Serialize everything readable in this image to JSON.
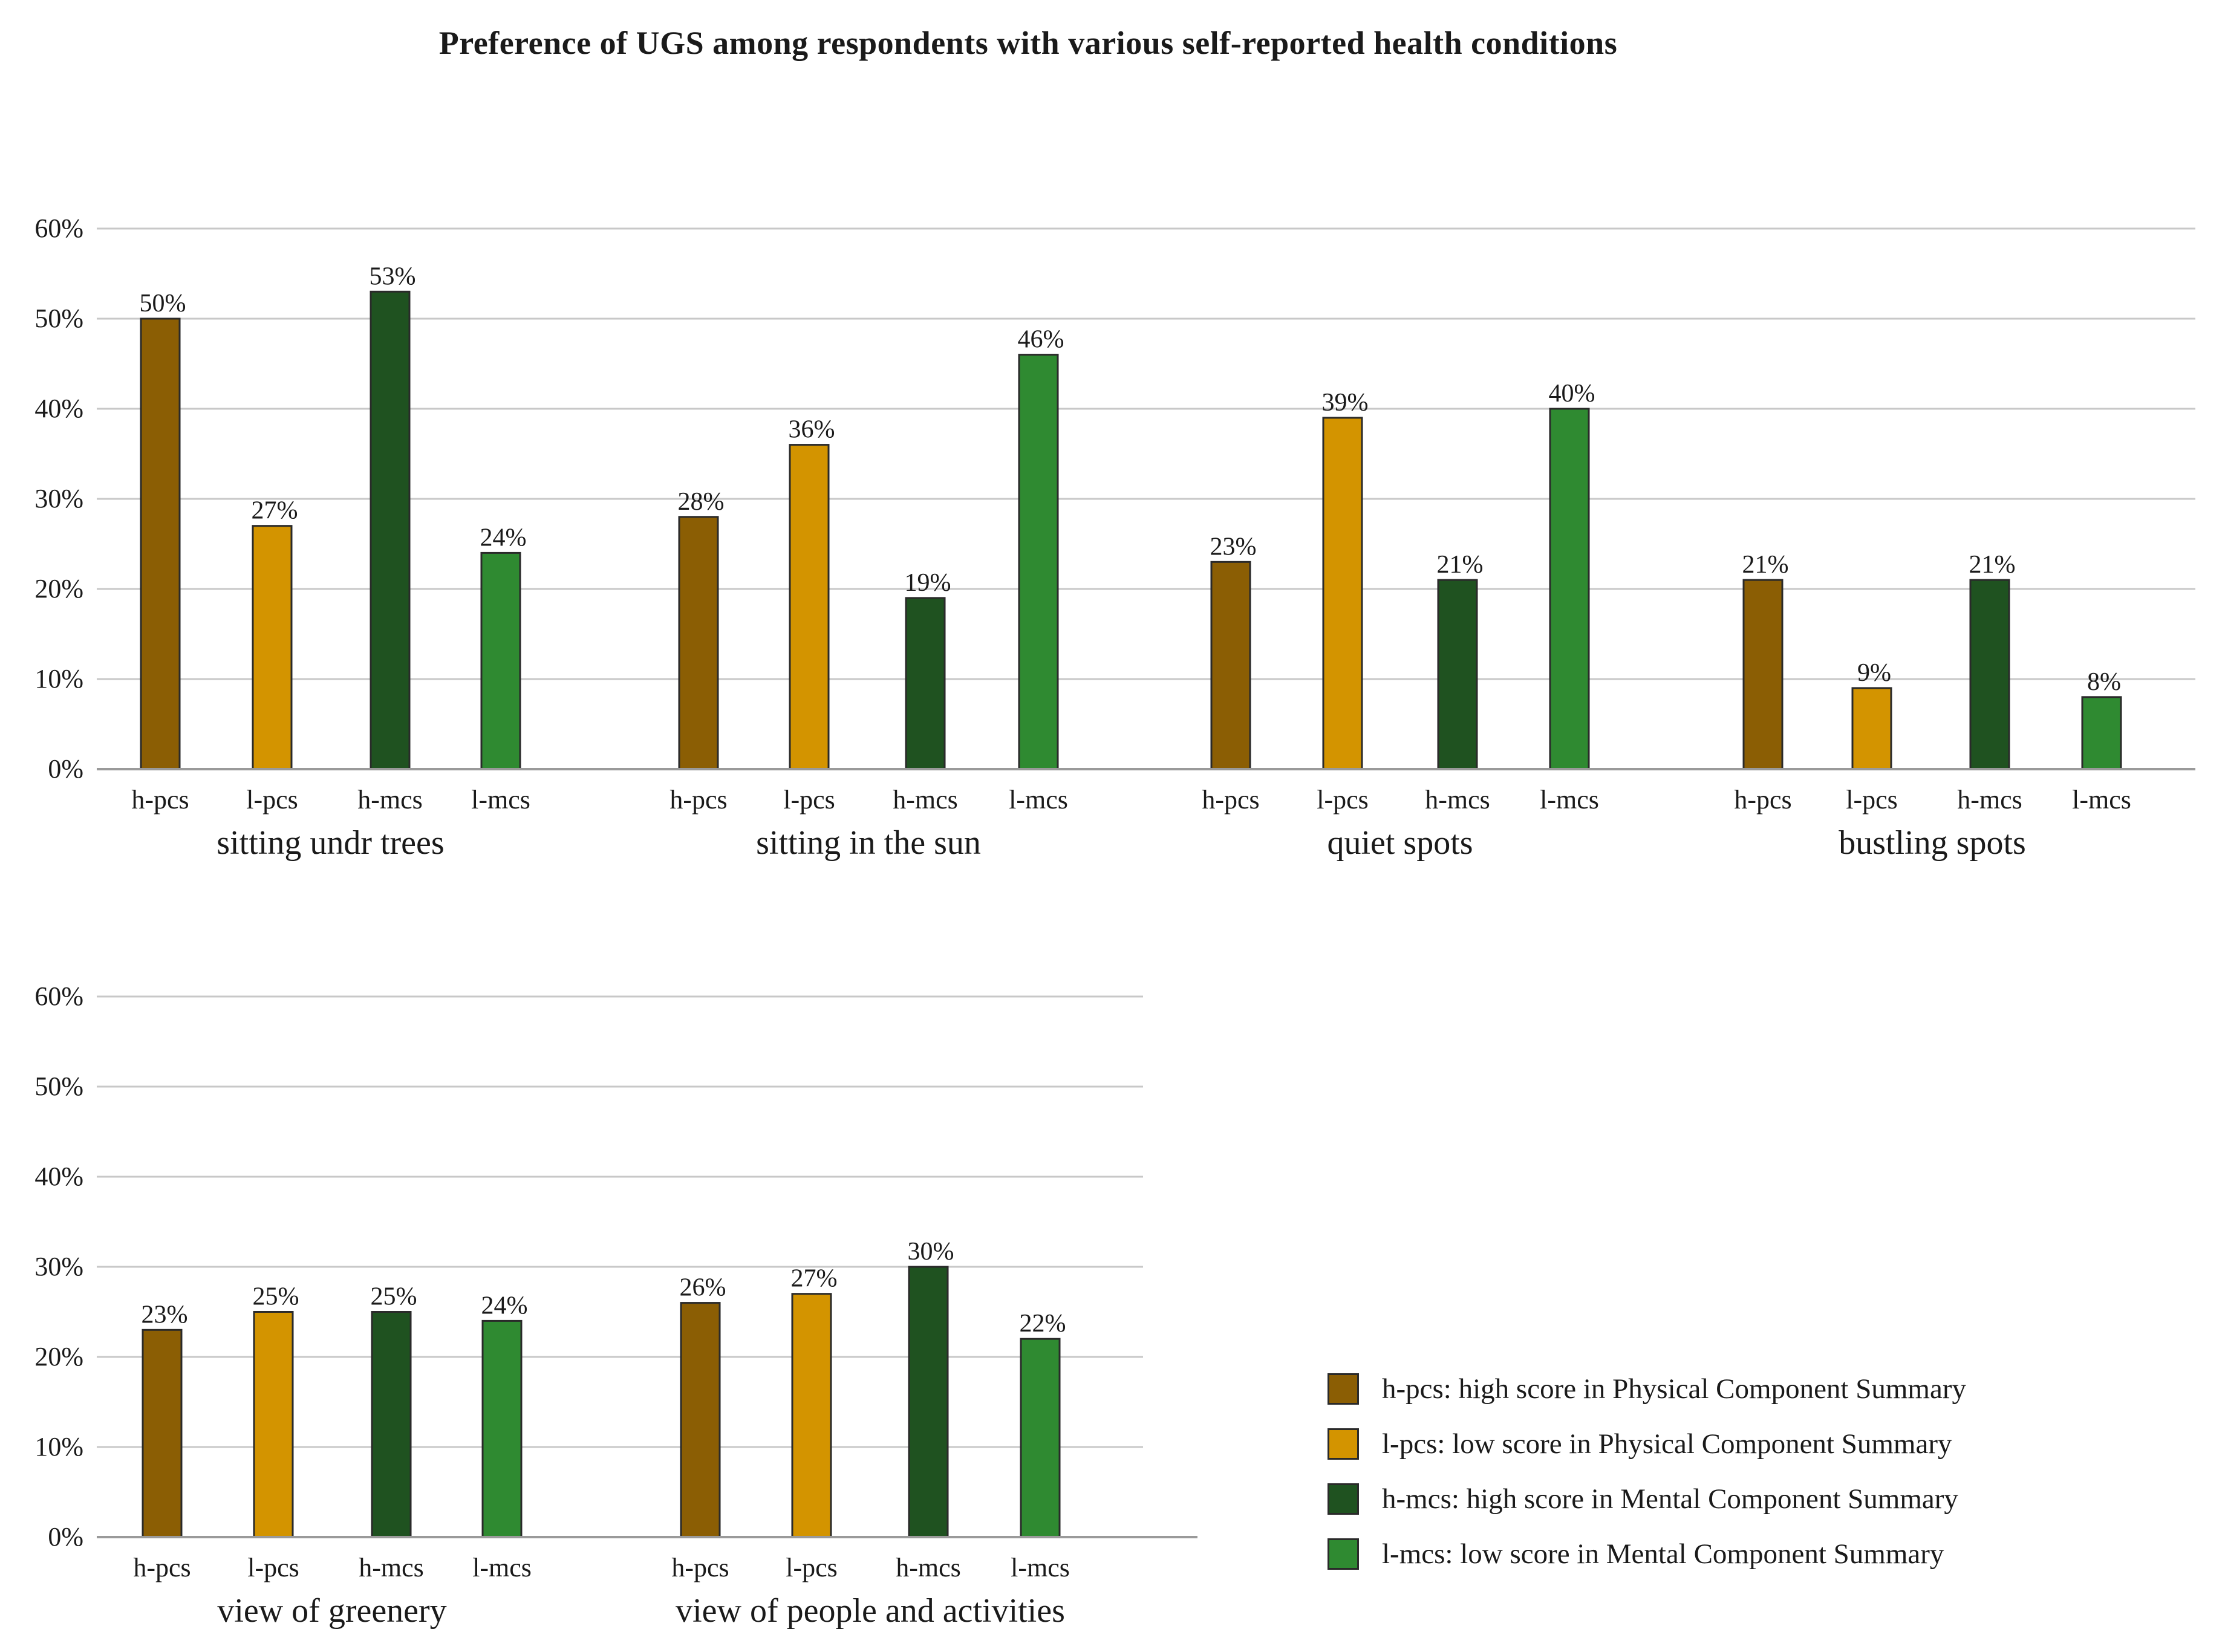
{
  "chart_data": {
    "type": "bar",
    "title": "Preference of UGS among respondents with various self-reported health conditions",
    "series_keys": [
      "h-pcs",
      "l-pcs",
      "h-mcs",
      "l-mcs"
    ],
    "series_colors": {
      "h-pcs": "#8B5E04",
      "l-pcs": "#D39400",
      "h-mcs": "#1F5220",
      "l-mcs": "#2F8A31"
    },
    "ylim": [
      0,
      60
    ],
    "yticks": [
      "0%",
      "10%",
      "20%",
      "30%",
      "40%",
      "50%",
      "60%"
    ],
    "panels": [
      {
        "groups": [
          {
            "name": "sitting undr trees",
            "values": [
              50,
              27,
              53,
              24
            ],
            "labels": [
              "50%",
              "27%",
              "53%",
              "24%"
            ]
          },
          {
            "name": "sitting in the sun",
            "values": [
              28,
              36,
              19,
              46
            ],
            "labels": [
              "28%",
              "36%",
              "19%",
              "46%"
            ]
          },
          {
            "name": "quiet spots",
            "values": [
              23,
              39,
              21,
              40
            ],
            "labels": [
              "23%",
              "39%",
              "21%",
              "40%"
            ]
          },
          {
            "name": "bustling spots",
            "values": [
              21,
              9,
              21,
              8
            ],
            "labels": [
              "21%",
              "9%",
              "21%",
              "8%"
            ]
          }
        ]
      },
      {
        "groups": [
          {
            "name": "view of greenery",
            "values": [
              23,
              25,
              25,
              24
            ],
            "labels": [
              "23%",
              "25%",
              "25%",
              "24%"
            ]
          },
          {
            "name": "view of people and activities",
            "values": [
              26,
              27,
              30,
              22
            ],
            "labels": [
              "26%",
              "27%",
              "30%",
              "22%"
            ]
          }
        ]
      }
    ],
    "legend": [
      {
        "key": "h-pcs",
        "label": "h-pcs: high score in Physical Component Summary"
      },
      {
        "key": "l-pcs",
        "label": "l-pcs: low score in Physical Component Summary"
      },
      {
        "key": "h-mcs",
        "label": "h-mcs: high score in Mental Component Summary"
      },
      {
        "key": "l-mcs",
        "label": "l-mcs: low score in Mental Component Summary"
      }
    ]
  }
}
